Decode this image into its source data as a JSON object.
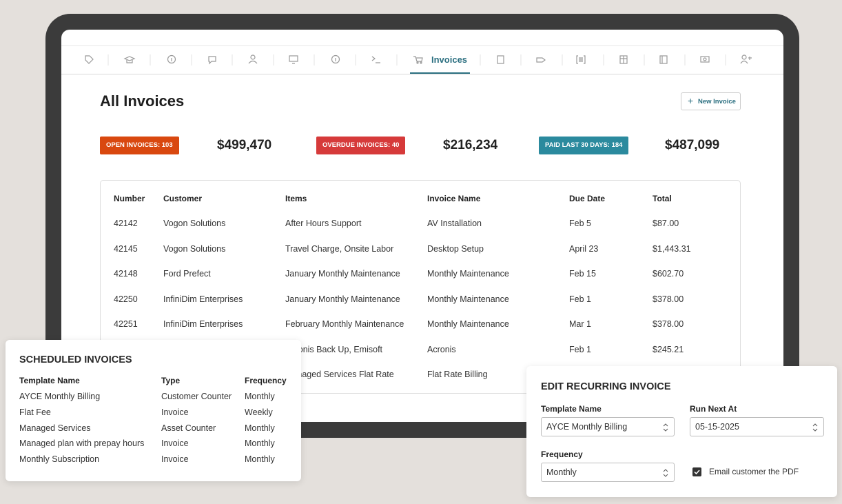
{
  "nav": {
    "active_tab": "Invoices"
  },
  "header": {
    "title": "All Invoices",
    "new_button": "New Invoice"
  },
  "summary": [
    {
      "badge": "OPEN INVOICES: 103",
      "amount": "$499,470",
      "color": "#d9480f"
    },
    {
      "badge": "OVERDUE INVOICES: 40",
      "amount": "$216,234",
      "color": "#d63a3a"
    },
    {
      "badge": "PAID LAST 30 DAYS: 184",
      "amount": "$487,099",
      "color": "#2b8a9e"
    }
  ],
  "table": {
    "columns": [
      "Number",
      "Customer",
      "Items",
      "Invoice Name",
      "Due Date",
      "Total"
    ],
    "rows": [
      {
        "number": "42142",
        "customer": "Vogon Solutions",
        "items": "After Hours Support",
        "invoice_name": "AV Installation",
        "due_date": "Feb 5",
        "total": "$87.00"
      },
      {
        "number": "42145",
        "customer": "Vogon Solutions",
        "items": "Travel Charge, Onsite Labor",
        "invoice_name": "Desktop Setup",
        "due_date": "April 23",
        "total": "$1,443.31"
      },
      {
        "number": "42148",
        "customer": "Ford Prefect",
        "items": "January Monthly Maintenance",
        "invoice_name": "Monthly Maintenance",
        "due_date": "Feb 15",
        "total": "$602.70"
      },
      {
        "number": "42250",
        "customer": "InfiniDim Enterprises",
        "items": "January Monthly Maintenance",
        "invoice_name": "Monthly Maintenance",
        "due_date": "Feb 1",
        "total": "$378.00"
      },
      {
        "number": "42251",
        "customer": "InfiniDim Enterprises",
        "items": "February Monthly Maintenance",
        "invoice_name": "Monthly Maintenance",
        "due_date": "Mar 1",
        "total": "$378.00"
      },
      {
        "items": "Acronis Back Up, Emisoft",
        "invoice_name": "Acronis",
        "due_date": "Feb 1",
        "total": "$245.21"
      },
      {
        "items": "Managed Services Flat Rate",
        "invoice_name": "Flat Rate Billing"
      }
    ]
  },
  "scheduled": {
    "title": "SCHEDULED INVOICES",
    "columns": [
      "Template Name",
      "Type",
      "Frequency"
    ],
    "rows": [
      [
        "AYCE Monthly Billing",
        "Customer Counter",
        "Monthly"
      ],
      [
        "Flat Fee",
        "Invoice",
        "Weekly"
      ],
      [
        "Managed Services",
        "Asset Counter",
        "Monthly"
      ],
      [
        "Managed plan with prepay hours",
        "Invoice",
        "Monthly"
      ],
      [
        "Monthly Subscription",
        "Invoice",
        "Monthly"
      ]
    ]
  },
  "edit": {
    "title": "EDIT RECURRING INVOICE",
    "template_label": "Template Name",
    "template_value": "AYCE Monthly Billing",
    "run_label": "Run Next At",
    "run_value": "05-15-2025",
    "frequency_label": "Frequency",
    "frequency_value": "Monthly",
    "email_label": "Email customer the PDF"
  }
}
